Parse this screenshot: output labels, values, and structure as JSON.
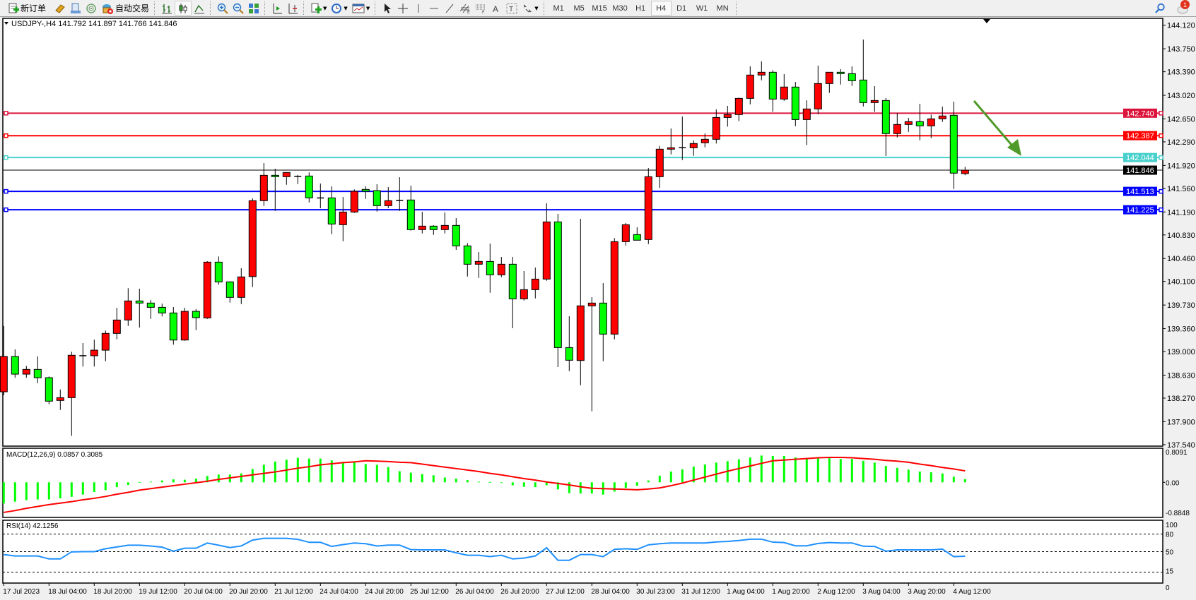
{
  "toolbar": {
    "new_order_label": "新订单",
    "auto_trading_label": "自动交易",
    "timeframes": [
      "M1",
      "M5",
      "M15",
      "M30",
      "H1",
      "H4",
      "D1",
      "W1",
      "MN"
    ],
    "active_timeframe": "H4",
    "notification_count": "1"
  },
  "chart": {
    "header": "USDJPY-,H4  141.792 141.897 141.766 141.846",
    "symbol": "USDJPY-",
    "timeframe": "H4",
    "colors": {
      "bull": "#ff0000",
      "bear": "#00ff00",
      "outline": "#000000",
      "background": "#ffffff"
    },
    "price_ticks": [
      "144.120",
      "143.750",
      "143.390",
      "143.020",
      "142.650",
      "142.290",
      "141.920",
      "141.560",
      "141.190",
      "140.830",
      "140.460",
      "140.100",
      "139.730",
      "139.360",
      "139.000",
      "138.630",
      "138.270",
      "137.900",
      "137.540"
    ],
    "price_range": [
      137.54,
      144.12
    ],
    "bid_line": {
      "price": 141.846,
      "label": "141.846",
      "color": "#000000"
    },
    "horizontal_lines": [
      {
        "price": 142.74,
        "label": "142.740",
        "color": "#dc143c"
      },
      {
        "price": 142.387,
        "label": "142.387",
        "color": "#ff0000"
      },
      {
        "price": 142.044,
        "label": "142.044",
        "color": "#48d1cc"
      },
      {
        "price": 141.513,
        "label": "141.513",
        "color": "#0000ff"
      },
      {
        "price": 141.225,
        "label": "141.225",
        "color": "#0000ff"
      }
    ],
    "arrow": {
      "color": "#4f9a2a",
      "direction": "down-right"
    },
    "time_labels": [
      "17 Jul 2023",
      "18 Jul 04:00",
      "18 Jul 20:00",
      "19 Jul 12:00",
      "20 Jul 04:00",
      "20 Jul 20:00",
      "21 Jul 12:00",
      "24 Jul 04:00",
      "24 Jul 20:00",
      "25 Jul 12:00",
      "26 Jul 04:00",
      "26 Jul 20:00",
      "27 Jul 12:00",
      "28 Jul 04:00",
      "30 Jul 23:00",
      "31 Jul 12:00",
      "1 Aug 04:00",
      "1 Aug 20:00",
      "2 Aug 12:00",
      "3 Aug 04:00",
      "3 Aug 20:00",
      "4 Aug 12:00"
    ]
  },
  "chart_data": [
    {
      "type": "candlestick",
      "title": "USDJPY-,H4",
      "ohlc_fields": [
        "open",
        "high",
        "low",
        "close"
      ],
      "candles": [
        [
          138.369,
          139.402,
          138.314,
          138.923
        ],
        [
          138.923,
          139.033,
          138.59,
          138.646
        ],
        [
          138.646,
          138.775,
          138.59,
          138.72
        ],
        [
          138.72,
          138.923,
          138.505,
          138.59
        ],
        [
          138.59,
          138.609,
          138.173,
          138.222
        ],
        [
          138.233,
          138.405,
          138.085,
          138.277
        ],
        [
          138.277,
          138.997,
          137.679,
          138.942
        ],
        [
          138.934,
          139.133,
          138.765,
          138.936
        ],
        [
          138.934,
          139.188,
          138.765,
          139.022
        ],
        [
          139.022,
          139.329,
          138.849,
          139.285
        ],
        [
          139.285,
          139.687,
          139.192,
          139.495
        ],
        [
          139.495,
          139.994,
          139.402,
          139.794
        ],
        [
          139.794,
          139.986,
          139.377,
          139.761
        ],
        [
          139.761,
          139.809,
          139.513,
          139.694
        ],
        [
          139.694,
          139.753,
          139.551,
          139.606
        ],
        [
          139.606,
          139.698,
          139.108,
          139.181
        ],
        [
          139.181,
          139.687,
          139.17,
          139.631
        ],
        [
          139.631,
          139.665,
          139.336,
          139.532
        ],
        [
          139.528,
          140.418,
          139.513,
          140.403
        ],
        [
          140.403,
          140.492,
          140.049,
          140.093
        ],
        [
          140.093,
          140.104,
          139.768,
          139.85
        ],
        [
          139.85,
          140.307,
          139.745,
          140.171
        ],
        [
          140.177,
          141.403,
          140.011,
          141.367
        ],
        [
          141.367,
          141.957,
          141.285,
          141.765
        ],
        [
          141.765,
          141.868,
          141.207,
          141.743
        ],
        [
          141.743,
          141.81,
          141.617,
          141.81
        ],
        [
          141.75,
          141.772,
          141.628,
          141.748
        ],
        [
          141.754,
          141.81,
          141.34,
          141.411
        ],
        [
          141.411,
          141.636,
          141.248,
          141.409
        ],
        [
          141.411,
          141.591,
          140.842,
          141.001
        ],
        [
          140.99,
          141.425,
          140.731,
          141.189
        ],
        [
          141.189,
          141.544,
          141.174,
          141.514
        ],
        [
          141.544,
          141.591,
          141.395,
          141.514
        ],
        [
          141.525,
          141.625,
          141.196,
          141.289
        ],
        [
          141.289,
          141.58,
          141.248,
          141.367
        ],
        [
          141.37,
          141.735,
          141.207,
          141.372
        ],
        [
          141.378,
          141.603,
          140.897,
          140.913
        ],
        [
          140.913,
          141.193,
          140.853,
          140.968
        ],
        [
          140.968,
          140.982,
          140.831,
          140.913
        ],
        [
          140.913,
          141.182,
          140.853,
          140.979
        ],
        [
          140.979,
          141.093,
          140.595,
          140.658
        ],
        [
          140.658,
          140.702,
          140.177,
          140.37
        ],
        [
          140.37,
          140.562,
          140.155,
          140.414
        ],
        [
          140.414,
          140.695,
          139.923,
          140.204
        ],
        [
          140.204,
          140.484,
          140.166,
          140.37
        ],
        [
          140.37,
          140.484,
          139.366,
          139.827
        ],
        [
          139.827,
          140.263,
          139.801,
          139.971
        ],
        [
          139.971,
          140.318,
          139.834,
          140.137
        ],
        [
          140.137,
          141.326,
          140.111,
          141.034
        ],
        [
          141.034,
          141.16,
          138.757,
          139.063
        ],
        [
          139.063,
          139.554,
          138.694,
          138.864
        ],
        [
          138.86,
          141.082,
          138.472,
          139.717
        ],
        [
          139.717,
          139.853,
          138.062,
          139.761
        ],
        [
          139.761,
          140.074,
          138.849,
          139.274
        ],
        [
          139.274,
          140.78,
          139.192,
          140.724
        ],
        [
          140.724,
          141.016,
          140.665,
          140.99
        ],
        [
          140.835,
          140.949,
          140.747,
          140.747
        ],
        [
          140.758,
          141.879,
          140.687,
          141.743
        ],
        [
          141.743,
          142.226,
          141.569,
          142.175
        ],
        [
          142.175,
          142.5,
          142.093,
          142.197
        ],
        [
          142.197,
          142.688,
          142.005,
          142.199
        ],
        [
          142.197,
          142.311,
          142.071,
          142.264
        ],
        [
          142.275,
          142.422,
          142.204,
          142.33
        ],
        [
          142.33,
          142.799,
          142.264,
          142.673
        ],
        [
          142.673,
          142.854,
          142.529,
          142.718
        ],
        [
          142.718,
          142.983,
          142.614,
          142.972
        ],
        [
          142.972,
          143.474,
          142.879,
          143.338
        ],
        [
          143.338,
          143.552,
          143.256,
          143.382
        ],
        [
          143.382,
          143.415,
          142.762,
          142.961
        ],
        [
          142.961,
          143.352,
          142.935,
          143.15
        ],
        [
          143.15,
          143.23,
          142.536,
          142.64
        ],
        [
          142.64,
          142.942,
          142.237,
          142.806
        ],
        [
          142.806,
          143.485,
          142.724,
          143.205
        ],
        [
          143.205,
          143.382,
          143.057,
          143.382
        ],
        [
          143.382,
          143.43,
          143.189,
          143.36
        ],
        [
          143.36,
          143.474,
          143.167,
          143.249
        ],
        [
          143.26,
          143.895,
          142.846,
          142.906
        ],
        [
          142.906,
          143.164,
          142.762,
          142.939
        ],
        [
          142.939,
          142.976,
          142.068,
          142.419
        ],
        [
          142.419,
          142.743,
          142.359,
          142.563
        ],
        [
          142.563,
          142.666,
          142.447,
          142.607
        ],
        [
          142.607,
          142.887,
          142.315,
          142.541
        ],
        [
          142.541,
          142.718,
          142.348,
          142.651
        ],
        [
          142.651,
          142.843,
          142.603,
          142.696
        ],
        [
          142.707,
          142.92,
          141.55,
          141.799
        ],
        [
          141.792,
          141.897,
          141.766,
          141.846
        ]
      ],
      "time_labels_every": 4
    },
    {
      "type": "bar+line",
      "title": "MACD(12,26,9) 0.0857 0.3085",
      "ylim": [
        -0.8848,
        0.8091
      ],
      "tick_labels": [
        "0.8091",
        "0.00",
        "-0.8848"
      ],
      "histogram_color": "#00ff00",
      "signal_color": "#ff0000",
      "histogram": [
        -0.57,
        -0.52,
        -0.48,
        -0.46,
        -0.46,
        -0.43,
        -0.39,
        -0.33,
        -0.26,
        -0.21,
        -0.13,
        -0.07,
        0.01,
        0.02,
        0.05,
        0.08,
        0.07,
        0.1,
        0.17,
        0.21,
        0.21,
        0.24,
        0.36,
        0.47,
        0.56,
        0.61,
        0.66,
        0.64,
        0.64,
        0.59,
        0.55,
        0.54,
        0.49,
        0.47,
        0.41,
        0.3,
        0.26,
        0.22,
        0.19,
        0.13,
        0.1,
        0.06,
        0.02,
        0.01,
        -0.02,
        -0.08,
        -0.12,
        -0.13,
        -0.08,
        -0.19,
        -0.29,
        -0.3,
        -0.3,
        -0.33,
        -0.25,
        -0.15,
        -0.09,
        0.05,
        0.18,
        0.29,
        0.35,
        0.42,
        0.48,
        0.53,
        0.57,
        0.62,
        0.67,
        0.72,
        0.71,
        0.71,
        0.67,
        0.65,
        0.65,
        0.65,
        0.63,
        0.63,
        0.58,
        0.53,
        0.44,
        0.39,
        0.34,
        0.29,
        0.27,
        0.24,
        0.15,
        0.0857
      ],
      "signal": [
        -0.81,
        -0.76,
        -0.7,
        -0.65,
        -0.6,
        -0.56,
        -0.52,
        -0.47,
        -0.43,
        -0.38,
        -0.32,
        -0.27,
        -0.21,
        -0.17,
        -0.13,
        -0.09,
        -0.05,
        -0.01,
        0.03,
        0.08,
        0.12,
        0.16,
        0.2,
        0.24,
        0.28,
        0.33,
        0.38,
        0.42,
        0.47,
        0.5,
        0.53,
        0.55,
        0.58,
        0.57,
        0.56,
        0.54,
        0.53,
        0.49,
        0.45,
        0.41,
        0.37,
        0.33,
        0.29,
        0.24,
        0.2,
        0.15,
        0.1,
        0.06,
        0.01,
        -0.03,
        -0.07,
        -0.12,
        -0.16,
        -0.17,
        -0.18,
        -0.19,
        -0.2,
        -0.18,
        -0.15,
        -0.09,
        -0.02,
        0.06,
        0.14,
        0.22,
        0.3,
        0.37,
        0.44,
        0.51,
        0.58,
        0.6,
        0.62,
        0.64,
        0.66,
        0.67,
        0.67,
        0.66,
        0.64,
        0.62,
        0.59,
        0.57,
        0.54,
        0.49,
        0.45,
        0.4,
        0.36,
        0.3085
      ]
    },
    {
      "type": "line",
      "title": "RSI(14) 42.1256",
      "ylim": [
        0,
        100
      ],
      "tick_labels": [
        "100",
        "80",
        "50",
        "15",
        "0"
      ],
      "levels": [
        80,
        50,
        15
      ],
      "line_color": "#1e90ff",
      "values": [
        45,
        42.6,
        42.6,
        42.6,
        37.6,
        37.6,
        49.6,
        50,
        50,
        55,
        58,
        61,
        61,
        59.7,
        57.7,
        50.8,
        55.8,
        55.8,
        64.7,
        61,
        57,
        59.7,
        69.7,
        72.8,
        72.8,
        72.8,
        71,
        65.9,
        65.9,
        58.9,
        62,
        64.7,
        63.5,
        59.7,
        61.2,
        61.2,
        53.5,
        53,
        53,
        53,
        48,
        43.8,
        43.8,
        41.5,
        43.8,
        37.6,
        39,
        42.6,
        56.6,
        35.3,
        35.3,
        45,
        45,
        41.5,
        53.9,
        55,
        53.9,
        61.6,
        63.5,
        64.7,
        64.7,
        64.7,
        64.7,
        66.6,
        67.4,
        69,
        71.3,
        71.3,
        66.2,
        65.5,
        60,
        60,
        64,
        65.5,
        64.7,
        64.7,
        59.3,
        58.9,
        50.8,
        53,
        53,
        53,
        53,
        54.3,
        41.5,
        42.1256
      ]
    }
  ]
}
